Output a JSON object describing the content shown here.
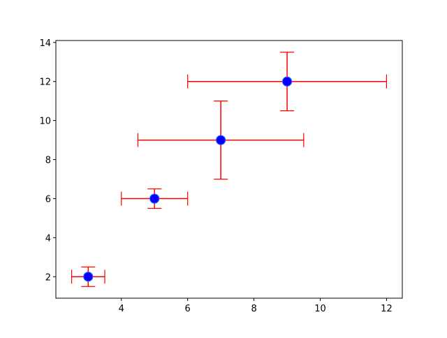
{
  "chart_data": {
    "type": "errorbar",
    "x": [
      3,
      5,
      7,
      9
    ],
    "y": [
      2,
      6,
      9,
      12
    ],
    "xerr": [
      0.5,
      1,
      2.5,
      3
    ],
    "yerr": [
      0.5,
      0.5,
      2,
      1.5
    ],
    "color": "#0000ff",
    "edge_color": "#3355ff",
    "error_color": "#ff0000",
    "xlim": [
      2.025,
      12.475
    ],
    "ylim": [
      0.9,
      14.1
    ],
    "xticks": [
      4,
      6,
      8,
      10,
      12
    ],
    "yticks": [
      2,
      4,
      6,
      8,
      10,
      12,
      14
    ]
  }
}
